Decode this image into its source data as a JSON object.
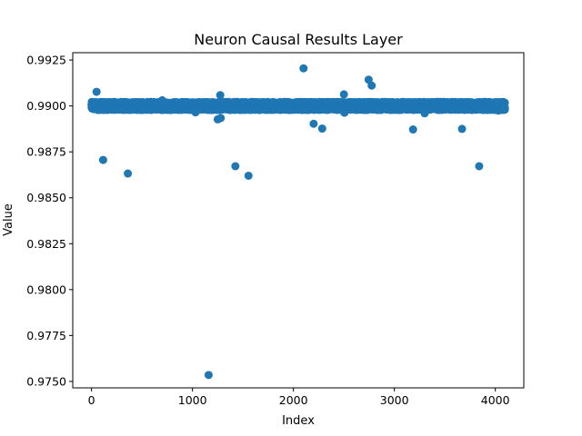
{
  "chart_data": {
    "type": "scatter",
    "title": "Neuron Causal Results Layer",
    "xlabel": "Index",
    "ylabel": "Value",
    "xlim": [
      -186,
      4282
    ],
    "ylim": [
      0.97465,
      0.9929
    ],
    "x_ticks": [
      {
        "value": 0,
        "label": "0"
      },
      {
        "value": 1000,
        "label": "1000"
      },
      {
        "value": 2000,
        "label": "2000"
      },
      {
        "value": 3000,
        "label": "3000"
      },
      {
        "value": 4000,
        "label": "4000"
      }
    ],
    "y_ticks": [
      {
        "value": 0.975,
        "label": "0.9750"
      },
      {
        "value": 0.9775,
        "label": "0.9775"
      },
      {
        "value": 0.98,
        "label": "0.9800"
      },
      {
        "value": 0.9825,
        "label": "0.9825"
      },
      {
        "value": 0.985,
        "label": "0.9850"
      },
      {
        "value": 0.9875,
        "label": "0.9875"
      },
      {
        "value": 0.99,
        "label": "0.9900"
      },
      {
        "value": 0.9925,
        "label": "0.9925"
      }
    ],
    "marker_color": "#1f77b4",
    "grid": false,
    "legend": "none",
    "band": {
      "x_range": [
        0,
        4095
      ],
      "y_center": 0.99,
      "y_spread": 0.00022,
      "count": 4096
    },
    "points": [
      {
        "x": 50,
        "y": 0.99077
      },
      {
        "x": 115,
        "y": 0.98706
      },
      {
        "x": 360,
        "y": 0.98632
      },
      {
        "x": 700,
        "y": 0.99031
      },
      {
        "x": 1030,
        "y": 0.98965
      },
      {
        "x": 1160,
        "y": 0.97535
      },
      {
        "x": 1250,
        "y": 0.98927
      },
      {
        "x": 1280,
        "y": 0.98934
      },
      {
        "x": 1275,
        "y": 0.99059
      },
      {
        "x": 1425,
        "y": 0.98672
      },
      {
        "x": 1555,
        "y": 0.9862
      },
      {
        "x": 2100,
        "y": 0.99205
      },
      {
        "x": 2200,
        "y": 0.98903
      },
      {
        "x": 2285,
        "y": 0.98877
      },
      {
        "x": 2500,
        "y": 0.99063
      },
      {
        "x": 2505,
        "y": 0.98963
      },
      {
        "x": 2745,
        "y": 0.99143
      },
      {
        "x": 2775,
        "y": 0.99111
      },
      {
        "x": 3185,
        "y": 0.98872
      },
      {
        "x": 3300,
        "y": 0.9896
      },
      {
        "x": 3670,
        "y": 0.98875
      },
      {
        "x": 3840,
        "y": 0.98672
      },
      {
        "x": 4030,
        "y": 0.98975
      }
    ]
  }
}
